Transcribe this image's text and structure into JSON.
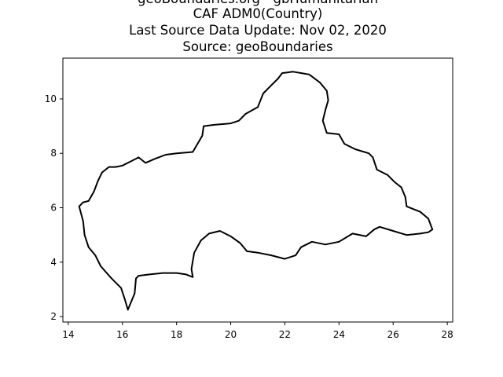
{
  "title": {
    "lines": [
      "geoBoundaries.org - gbHumanitarian",
      "CAF ADM0(Country)",
      "Last Source Data Update: Nov 02, 2020",
      "Source: geoBoundaries"
    ]
  },
  "chart_data": {
    "type": "map",
    "xlim": [
      13.8,
      28.2
    ],
    "ylim": [
      1.8,
      11.5
    ],
    "x_ticks": [
      14,
      16,
      18,
      20,
      22,
      24,
      26,
      28
    ],
    "y_ticks": [
      2,
      4,
      6,
      8,
      10
    ],
    "x_tick_labels": [
      "14",
      "16",
      "18",
      "20",
      "22",
      "24",
      "26",
      "28"
    ],
    "y_tick_labels": [
      "2",
      "4",
      "6",
      "8",
      "10"
    ],
    "grid": false,
    "boundary_color": "#000000",
    "boundary": [
      [
        14.4,
        6.05
      ],
      [
        14.55,
        6.2
      ],
      [
        14.75,
        6.25
      ],
      [
        14.95,
        6.6
      ],
      [
        15.1,
        7.0
      ],
      [
        15.25,
        7.3
      ],
      [
        15.5,
        7.5
      ],
      [
        15.75,
        7.5
      ],
      [
        16.0,
        7.55
      ],
      [
        16.3,
        7.7
      ],
      [
        16.6,
        7.85
      ],
      [
        16.85,
        7.65
      ],
      [
        17.2,
        7.8
      ],
      [
        17.6,
        7.95
      ],
      [
        18.0,
        8.0
      ],
      [
        18.6,
        8.05
      ],
      [
        18.95,
        8.65
      ],
      [
        19.0,
        9.0
      ],
      [
        19.4,
        9.05
      ],
      [
        20.0,
        9.1
      ],
      [
        20.3,
        9.2
      ],
      [
        20.55,
        9.45
      ],
      [
        21.0,
        9.7
      ],
      [
        21.2,
        10.2
      ],
      [
        21.5,
        10.5
      ],
      [
        21.75,
        10.75
      ],
      [
        21.9,
        10.95
      ],
      [
        22.3,
        11.0
      ],
      [
        22.9,
        10.9
      ],
      [
        23.3,
        10.6
      ],
      [
        23.55,
        10.3
      ],
      [
        23.6,
        9.95
      ],
      [
        23.5,
        9.6
      ],
      [
        23.4,
        9.2
      ],
      [
        23.55,
        8.75
      ],
      [
        24.0,
        8.7
      ],
      [
        24.2,
        8.35
      ],
      [
        24.6,
        8.15
      ],
      [
        25.1,
        8.0
      ],
      [
        25.25,
        7.85
      ],
      [
        25.4,
        7.4
      ],
      [
        25.8,
        7.2
      ],
      [
        26.05,
        6.95
      ],
      [
        26.3,
        6.75
      ],
      [
        26.45,
        6.4
      ],
      [
        26.5,
        6.05
      ],
      [
        27.0,
        5.85
      ],
      [
        27.3,
        5.6
      ],
      [
        27.45,
        5.2
      ],
      [
        27.3,
        5.1
      ],
      [
        27.0,
        5.05
      ],
      [
        26.5,
        5.0
      ],
      [
        26.0,
        5.15
      ],
      [
        25.5,
        5.3
      ],
      [
        25.3,
        5.2
      ],
      [
        25.0,
        4.95
      ],
      [
        24.5,
        5.05
      ],
      [
        24.0,
        4.75
      ],
      [
        23.5,
        4.65
      ],
      [
        23.0,
        4.75
      ],
      [
        22.6,
        4.55
      ],
      [
        22.4,
        4.25
      ],
      [
        22.0,
        4.12
      ],
      [
        21.5,
        4.25
      ],
      [
        21.0,
        4.35
      ],
      [
        20.6,
        4.4
      ],
      [
        20.35,
        4.7
      ],
      [
        20.0,
        4.95
      ],
      [
        19.6,
        5.15
      ],
      [
        19.2,
        5.05
      ],
      [
        18.9,
        4.8
      ],
      [
        18.65,
        4.35
      ],
      [
        18.55,
        3.75
      ],
      [
        18.6,
        3.45
      ],
      [
        18.35,
        3.55
      ],
      [
        18.0,
        3.6
      ],
      [
        17.5,
        3.6
      ],
      [
        17.0,
        3.55
      ],
      [
        16.6,
        3.5
      ],
      [
        16.5,
        3.4
      ],
      [
        16.45,
        2.85
      ],
      [
        16.2,
        2.25
      ],
      [
        16.1,
        2.6
      ],
      [
        15.95,
        3.05
      ],
      [
        15.6,
        3.4
      ],
      [
        15.2,
        3.85
      ],
      [
        15.0,
        4.25
      ],
      [
        14.75,
        4.55
      ],
      [
        14.6,
        5.0
      ],
      [
        14.55,
        5.5
      ]
    ]
  }
}
